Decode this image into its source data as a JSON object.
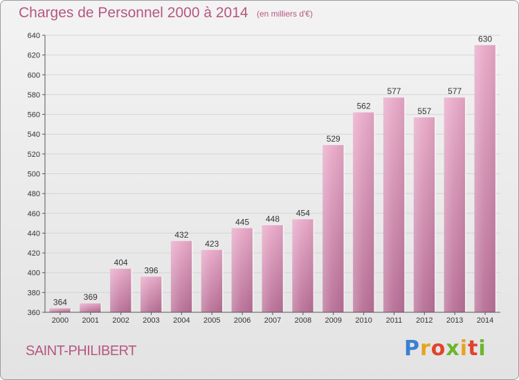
{
  "header": {
    "title": "Charges de Personnel 2000 à 2014",
    "subtitle": "(en milliers d'€)"
  },
  "footer": {
    "city": "SAINT-PHILIBERT",
    "logo": "Proxiti"
  },
  "colors": {
    "title": "#b5577f",
    "bar_top": "#e8a9c8",
    "bar_bottom": "#b86f96",
    "grid": "#d4d4d4"
  },
  "chart_data": {
    "type": "bar",
    "categories": [
      "2000",
      "2001",
      "2002",
      "2003",
      "2004",
      "2005",
      "2006",
      "2007",
      "2008",
      "2009",
      "2010",
      "2011",
      "2012",
      "2013",
      "2014"
    ],
    "values": [
      364,
      369,
      404,
      396,
      432,
      423,
      445,
      448,
      454,
      529,
      562,
      577,
      557,
      577,
      630
    ],
    "title": "Charges de Personnel 2000 à 2014",
    "subtitle": "(en milliers d'€)",
    "xlabel": "",
    "ylabel": "",
    "ylim": [
      360,
      640
    ],
    "yticks": [
      360,
      380,
      400,
      420,
      440,
      460,
      480,
      500,
      520,
      540,
      560,
      580,
      600,
      620,
      640
    ],
    "grid": true,
    "data_labels": true
  }
}
